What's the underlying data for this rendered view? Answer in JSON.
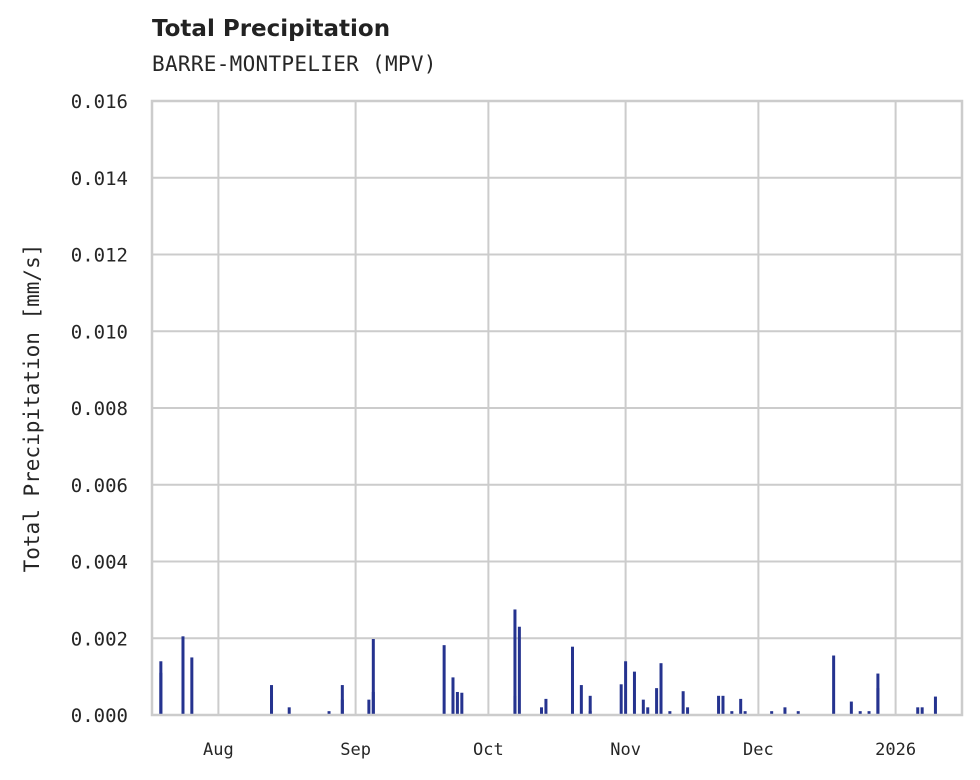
{
  "header": {
    "title": "Total Precipitation",
    "subtitle": "BARRE-MONTPELIER (MPV)"
  },
  "colors": {
    "bar": "#25338f",
    "grid": "#cccccc",
    "axis": "#cccccc",
    "text": "#262626"
  },
  "chart_data": {
    "type": "bar",
    "title": "Total Precipitation",
    "subtitle": "BARRE-MONTPELIER (MPV)",
    "xlabel": "",
    "ylabel": "Total Precipitation [mm/s]",
    "ylim": [
      0,
      0.016
    ],
    "yticks": [
      "0.000",
      "0.002",
      "0.004",
      "0.006",
      "0.008",
      "0.010",
      "0.012",
      "0.014",
      "0.016"
    ],
    "xticks": [
      "Aug",
      "Sep",
      "Oct",
      "Nov",
      "Dec",
      "2026"
    ],
    "grid": true,
    "legend": null,
    "x_range": [
      "2025-07-17",
      "2026-01-16"
    ],
    "series": [
      {
        "name": "Total Precipitation",
        "points": [
          {
            "date": "2025-07-19",
            "value": 0.0011
          },
          {
            "date": "2025-07-19",
            "value": 0.0014
          },
          {
            "date": "2025-07-24",
            "value": 0.00205
          },
          {
            "date": "2025-07-26",
            "value": 0.0015
          },
          {
            "date": "2025-08-13",
            "value": 0.0005
          },
          {
            "date": "2025-08-13",
            "value": 0.00078
          },
          {
            "date": "2025-08-17",
            "value": 0.0002
          },
          {
            "date": "2025-08-26",
            "value": 0.0001
          },
          {
            "date": "2025-08-29",
            "value": 0.0004
          },
          {
            "date": "2025-08-29",
            "value": 0.00078
          },
          {
            "date": "2025-09-04",
            "value": 0.0004
          },
          {
            "date": "2025-09-05",
            "value": 0.00198
          },
          {
            "date": "2025-09-05",
            "value": 0.0006
          },
          {
            "date": "2025-09-21",
            "value": 0.00182
          },
          {
            "date": "2025-09-23",
            "value": 0.0004
          },
          {
            "date": "2025-09-23",
            "value": 0.00098
          },
          {
            "date": "2025-09-24",
            "value": 0.0006
          },
          {
            "date": "2025-09-25",
            "value": 0.00058
          },
          {
            "date": "2025-10-07",
            "value": 0.0005
          },
          {
            "date": "2025-10-07",
            "value": 0.00275
          },
          {
            "date": "2025-10-08",
            "value": 0.0023
          },
          {
            "date": "2025-10-13",
            "value": 0.0002
          },
          {
            "date": "2025-10-14",
            "value": 0.00042
          },
          {
            "date": "2025-10-20",
            "value": 0.0014
          },
          {
            "date": "2025-10-20",
            "value": 0.00178
          },
          {
            "date": "2025-10-22",
            "value": 0.00078
          },
          {
            "date": "2025-10-24",
            "value": 0.0005
          },
          {
            "date": "2025-10-24",
            "value": 0.0001
          },
          {
            "date": "2025-10-31",
            "value": 0.0008
          },
          {
            "date": "2025-11-01",
            "value": 0.0014
          },
          {
            "date": "2025-11-03",
            "value": 0.00113
          },
          {
            "date": "2025-11-05",
            "value": 0.0004
          },
          {
            "date": "2025-11-06",
            "value": 0.0002
          },
          {
            "date": "2025-11-08",
            "value": 0.0007
          },
          {
            "date": "2025-11-09",
            "value": 0.00135
          },
          {
            "date": "2025-11-11",
            "value": 0.0001
          },
          {
            "date": "2025-11-14",
            "value": 0.00062
          },
          {
            "date": "2025-11-15",
            "value": 0.0002
          },
          {
            "date": "2025-11-22",
            "value": 0.0005
          },
          {
            "date": "2025-11-23",
            "value": 0.0005
          },
          {
            "date": "2025-11-25",
            "value": 0.0001
          },
          {
            "date": "2025-11-27",
            "value": 0.00042
          },
          {
            "date": "2025-11-28",
            "value": 0.0001
          },
          {
            "date": "2025-12-04",
            "value": 0.0001
          },
          {
            "date": "2025-12-07",
            "value": 0.0002
          },
          {
            "date": "2025-12-10",
            "value": 0.0001
          },
          {
            "date": "2025-12-18",
            "value": 0.00155
          },
          {
            "date": "2025-12-22",
            "value": 0.00035
          },
          {
            "date": "2025-12-24",
            "value": 0.0001
          },
          {
            "date": "2025-12-26",
            "value": 0.0001
          },
          {
            "date": "2025-12-28",
            "value": 0.00108
          },
          {
            "date": "2025-12-28",
            "value": 0.0007
          },
          {
            "date": "2026-01-06",
            "value": 0.0002
          },
          {
            "date": "2026-01-07",
            "value": 0.0002
          },
          {
            "date": "2026-01-10",
            "value": 0.00048
          }
        ]
      }
    ]
  }
}
